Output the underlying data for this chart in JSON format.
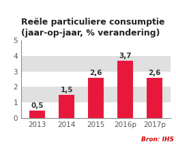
{
  "title": "Reële particuliere consumptie\n(jaar-op-jaar, % verandering)",
  "categories": [
    "2013",
    "2014",
    "2015",
    "2016p",
    "2017p"
  ],
  "values": [
    0.5,
    1.5,
    2.6,
    3.7,
    2.6
  ],
  "bar_color": "#e8183c",
  "background_color": "#ffffff",
  "stripe_color": "#e0e0e0",
  "ylim": [
    0,
    5
  ],
  "yticks": [
    0,
    1,
    2,
    3,
    4,
    5
  ],
  "source_text": "Bron: IHS",
  "source_color": "#cc0000",
  "title_fontsize": 9.0,
  "tick_fontsize": 7.5,
  "label_fontsize": 7.5,
  "source_fontsize": 6.5
}
